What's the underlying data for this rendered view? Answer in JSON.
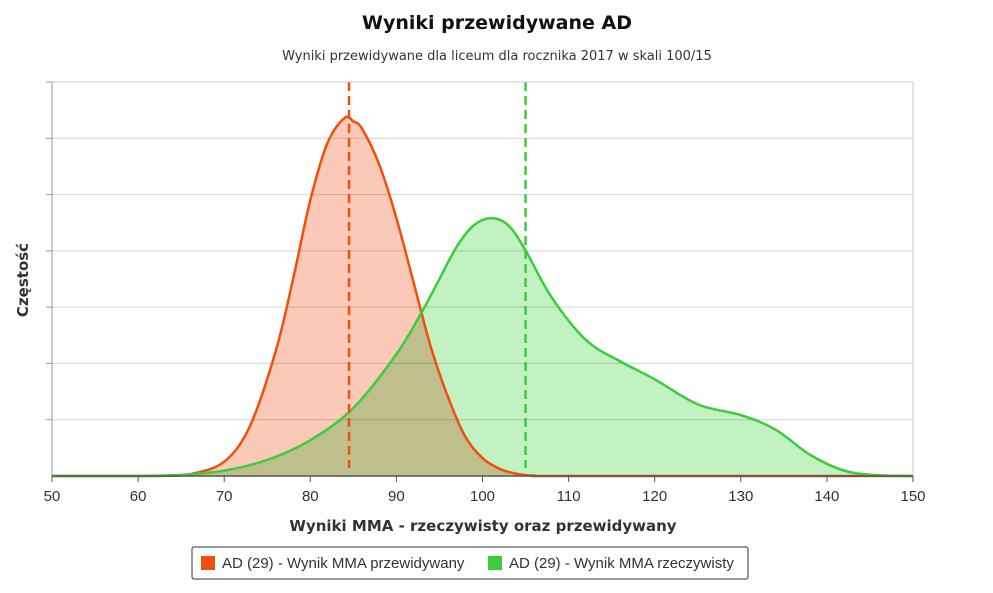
{
  "chart_data": {
    "type": "area",
    "title": "Wyniki przewidywane AD",
    "subtitle": "Wyniki przewidywane dla liceum dla rocznika 2017 w skali 100/15",
    "xlabel": "Wyniki MMA - rzeczywisty oraz przewidywany",
    "ylabel": "Częstość",
    "xlim": [
      50,
      150
    ],
    "ylim": [
      0,
      1.1
    ],
    "x_ticks": [
      "50",
      "60",
      "70",
      "80",
      "90",
      "100",
      "110",
      "120",
      "130",
      "140",
      "150"
    ],
    "grid": true,
    "legend_position": "bottom-center",
    "series": [
      {
        "name": "AD (29) - Wynik MMA przewidywany",
        "color": "#f24f0f",
        "fill": "#f9c0ac",
        "mean_line": 84.5,
        "x": [
          50,
          62,
          66,
          70,
          73,
          76,
          78,
          80,
          82,
          84,
          85,
          86,
          88,
          90,
          92,
          94,
          96,
          98,
          100,
          102,
          104,
          106,
          110,
          150
        ],
        "y": [
          0,
          0,
          0.005,
          0.04,
          0.14,
          0.35,
          0.55,
          0.77,
          0.93,
          1.0,
          0.99,
          0.97,
          0.87,
          0.72,
          0.54,
          0.36,
          0.22,
          0.11,
          0.05,
          0.02,
          0.006,
          0.001,
          0,
          0
        ]
      },
      {
        "name": "AD (29) - Wynik MMA rzeczywisty",
        "color": "#3ccc3c",
        "fill": "#b7f0b7",
        "mean_line": 105,
        "x": [
          50,
          60,
          65,
          70,
          75,
          80,
          85,
          90,
          93,
          95,
          97,
          99,
          101,
          103,
          105,
          108,
          112,
          116,
          120,
          125,
          130,
          134,
          138,
          142,
          146,
          150
        ],
        "y": [
          0,
          0,
          0.003,
          0.015,
          0.045,
          0.1,
          0.19,
          0.34,
          0.46,
          0.55,
          0.64,
          0.7,
          0.72,
          0.7,
          0.63,
          0.5,
          0.38,
          0.32,
          0.27,
          0.2,
          0.17,
          0.13,
          0.06,
          0.015,
          0.002,
          0
        ]
      }
    ]
  }
}
